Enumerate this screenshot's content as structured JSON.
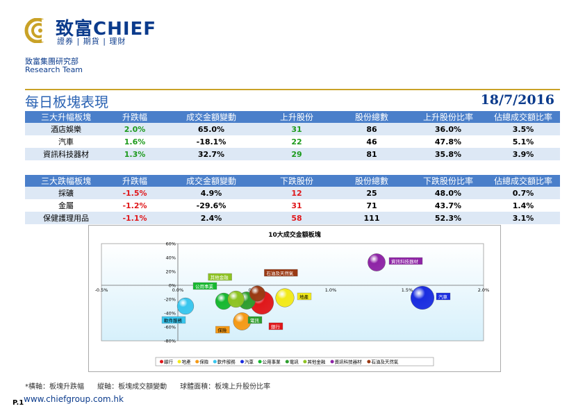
{
  "header": {
    "logo_cn": "致富CHIEF",
    "logo_sub": "證券 | 期貨 | 理財",
    "dept_cn": "致富集團研究部",
    "dept_en": "Research Team"
  },
  "title": "每日板塊表現",
  "date": "18/7/2016",
  "top_table": {
    "headers": [
      "三大升幅板塊",
      "升跌幅",
      "成交金額變動",
      "上升股份",
      "股份總數",
      "上升股份比率",
      "佔總成交額比率"
    ],
    "rows": [
      [
        "酒店娛樂",
        "2.0%",
        "65.0%",
        "31",
        "86",
        "36.0%",
        "3.5%"
      ],
      [
        "汽車",
        "1.6%",
        "-18.1%",
        "22",
        "46",
        "47.8%",
        "5.1%"
      ],
      [
        "資訊科技器材",
        "1.3%",
        "32.7%",
        "29",
        "81",
        "35.8%",
        "3.9%"
      ]
    ]
  },
  "bottom_table": {
    "headers": [
      "三大跌幅板塊",
      "升跌幅",
      "成交金額變動",
      "下跌股份",
      "股份總數",
      "下跌股份比率",
      "佔總成交額比率"
    ],
    "rows": [
      [
        "採礦",
        "-1.5%",
        "4.9%",
        "12",
        "25",
        "48.0%",
        "0.7%"
      ],
      [
        "金屬",
        "-1.2%",
        "-29.6%",
        "31",
        "71",
        "43.7%",
        "1.4%"
      ],
      [
        "保健護理用品",
        "-1.1%",
        "2.4%",
        "58",
        "111",
        "52.3%",
        "3.1%"
      ]
    ]
  },
  "colors": {
    "green": "#1c9a1c",
    "red": "#e0171a",
    "header_bg": "#4a7fca"
  },
  "chart_data": {
    "type": "scatter",
    "title": "10大成交金額板塊",
    "xlim": [
      -0.5,
      2.0
    ],
    "ylim": [
      -80,
      60
    ],
    "x_ticks": [
      "-0.5%",
      "0.0%",
      "0.5%",
      "1.0%",
      "1.5%",
      "2.0%"
    ],
    "x_tick_values": [
      -0.5,
      0.0,
      0.5,
      1.0,
      1.5,
      2.0
    ],
    "y_ticks": [
      "60%",
      "40%",
      "20%",
      "0%",
      "-20%",
      "-40%",
      "-60%",
      "-80%"
    ],
    "y_tick_values": [
      60,
      40,
      20,
      0,
      -20,
      -40,
      -60,
      -80
    ],
    "series": [
      {
        "name": "銀行",
        "x": 0.55,
        "y": -25,
        "size": 1.2,
        "color": "#e0171a",
        "label_dx": 12,
        "label_dy": 36
      },
      {
        "name": "地產",
        "x": 0.7,
        "y": -18,
        "size": 0.95,
        "color": "#f2ea1a",
        "label_dx": 20,
        "label_dy": 0
      },
      {
        "name": "保險",
        "x": 0.42,
        "y": -52,
        "size": 0.9,
        "color": "#f59a16",
        "label_dx": -36,
        "label_dy": 14
      },
      {
        "name": "軟件服務",
        "x": 0.05,
        "y": -30,
        "size": 0.85,
        "color": "#39c6ee",
        "label_dx": -32,
        "label_dy": 22
      },
      {
        "name": "汽車",
        "x": 1.6,
        "y": -18,
        "size": 1.2,
        "color": "#1a2de0",
        "label_dx": 22,
        "label_dy": 0
      },
      {
        "name": "公用事業",
        "x": 0.3,
        "y": -23,
        "size": 0.85,
        "color": "#17b830",
        "label_dx": -42,
        "label_dy": -20
      },
      {
        "name": "電訊",
        "x": 0.45,
        "y": -22,
        "size": 0.9,
        "color": "#2e9e2e",
        "label_dx": 4,
        "label_dy": 30
      },
      {
        "name": "其他金融",
        "x": 0.38,
        "y": -20,
        "size": 0.85,
        "color": "#8ec322",
        "label_dx": -38,
        "label_dy": -30
      },
      {
        "name": "資訊科技器材",
        "x": 1.3,
        "y": 33,
        "size": 0.9,
        "color": "#8e24a6",
        "label_dx": 20,
        "label_dy": 0
      },
      {
        "name": "石油及天然氣",
        "x": 0.52,
        "y": -12,
        "size": 0.8,
        "color": "#9a3a14",
        "label_dx": 12,
        "label_dy": -28
      }
    ],
    "legend": [
      "銀行",
      "地產",
      "保險",
      "軟件服務",
      "汽車",
      "公用事業",
      "電訊",
      "其他金融",
      "資訊科技器材",
      "石油及天然氣"
    ]
  },
  "footnote": {
    "x_axis": "*橫軸：板塊升跌幅",
    "y_axis": "縱軸：板塊成交額變動",
    "bubble": "球體面積：板塊上升股份比率"
  },
  "page_no": "P.1",
  "url": "www.chiefgroup.com.hk"
}
